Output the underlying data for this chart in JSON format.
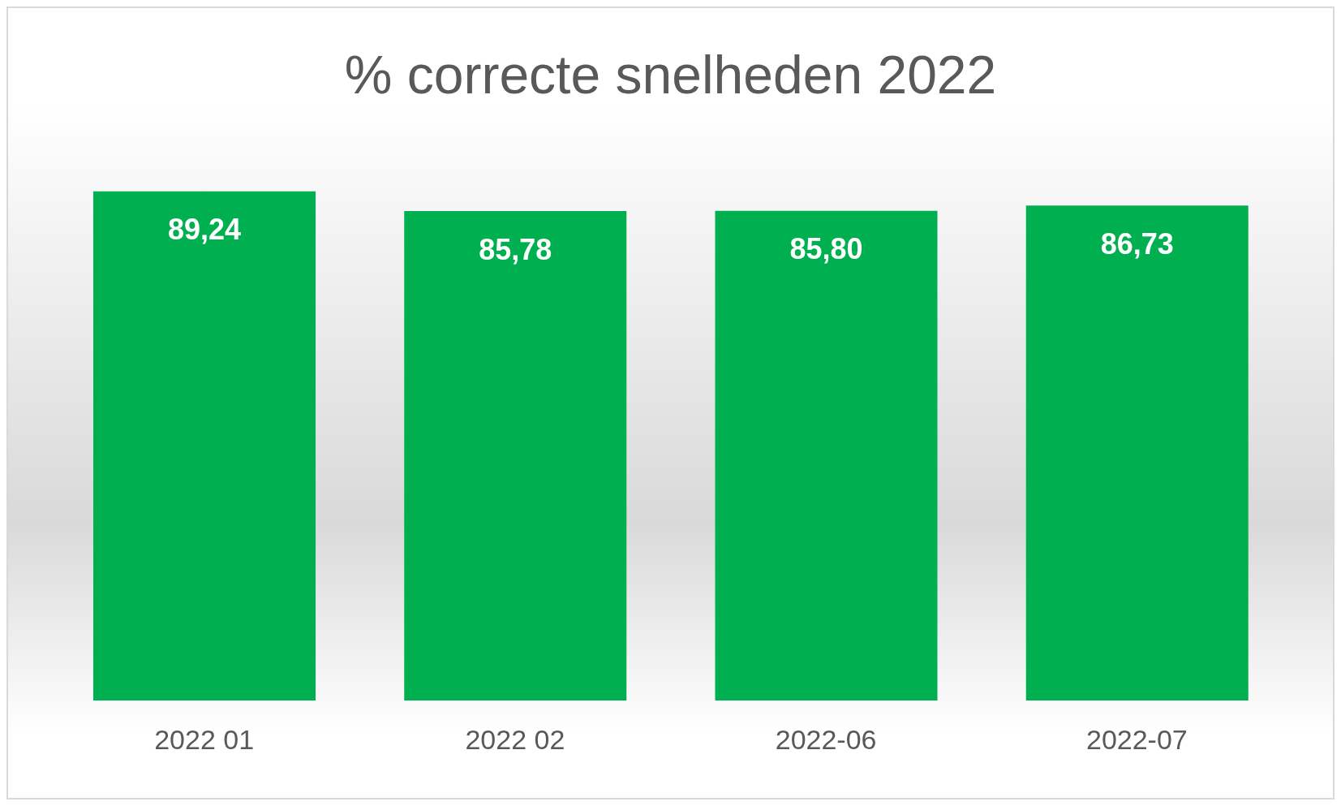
{
  "chart_data": {
    "type": "bar",
    "title": "% correcte snelheden 2022",
    "categories": [
      "2022 01",
      "2022 02",
      "2022-06",
      "2022-07"
    ],
    "values": [
      89.24,
      85.78,
      85.8,
      86.73
    ],
    "value_labels": [
      "89,24",
      "85,78",
      "85,80",
      "86,73"
    ],
    "color": "#00b050"
  }
}
